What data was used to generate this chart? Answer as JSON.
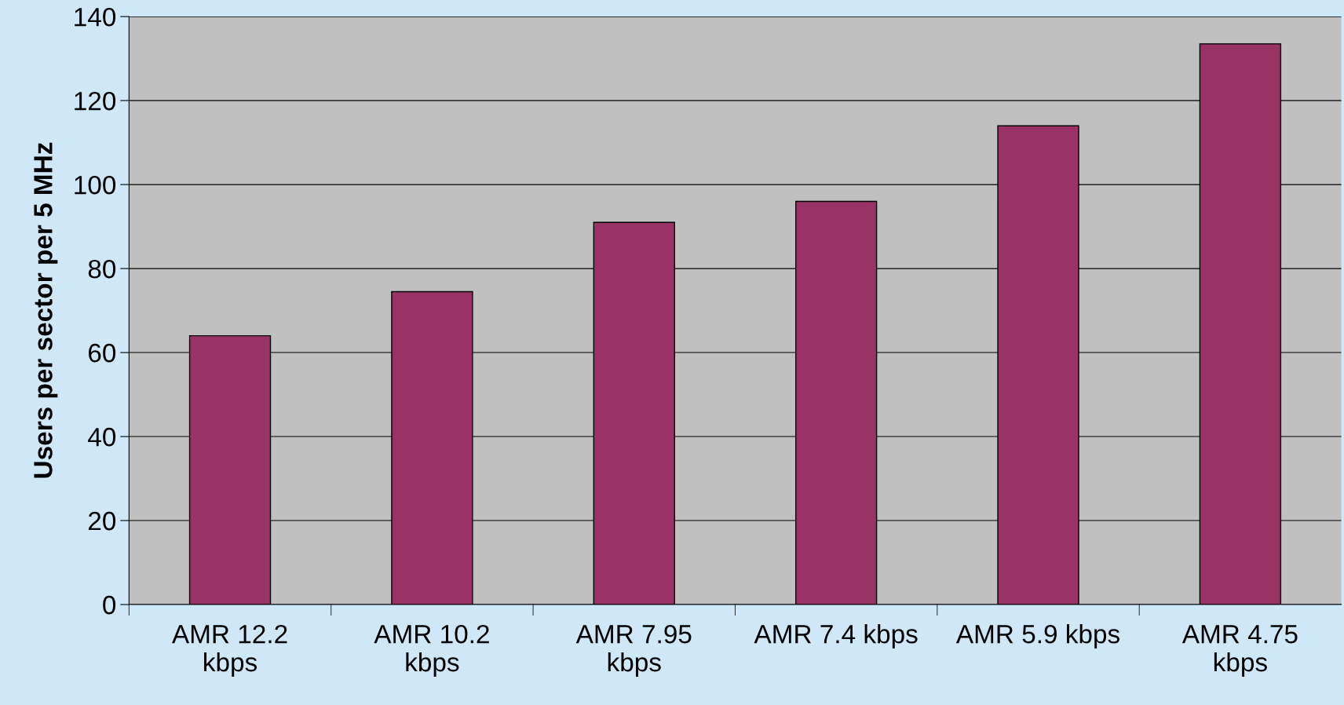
{
  "chart_data": {
    "type": "bar",
    "ylabel": "Users per sector per 5 MHz",
    "categories": [
      "AMR 12.2\nkbps",
      "AMR 10.2\nkbps",
      "AMR 7.95\nkbps",
      "AMR 7.4 kbps",
      "AMR 5.9 kbps",
      "AMR 4.75\nkbps"
    ],
    "values": [
      64,
      74.5,
      91,
      96,
      114,
      133.5
    ],
    "color": "#993366",
    "ylim": [
      0,
      140
    ],
    "yticks": [
      0,
      20,
      40,
      60,
      80,
      100,
      120,
      140
    ],
    "grid": "y"
  }
}
